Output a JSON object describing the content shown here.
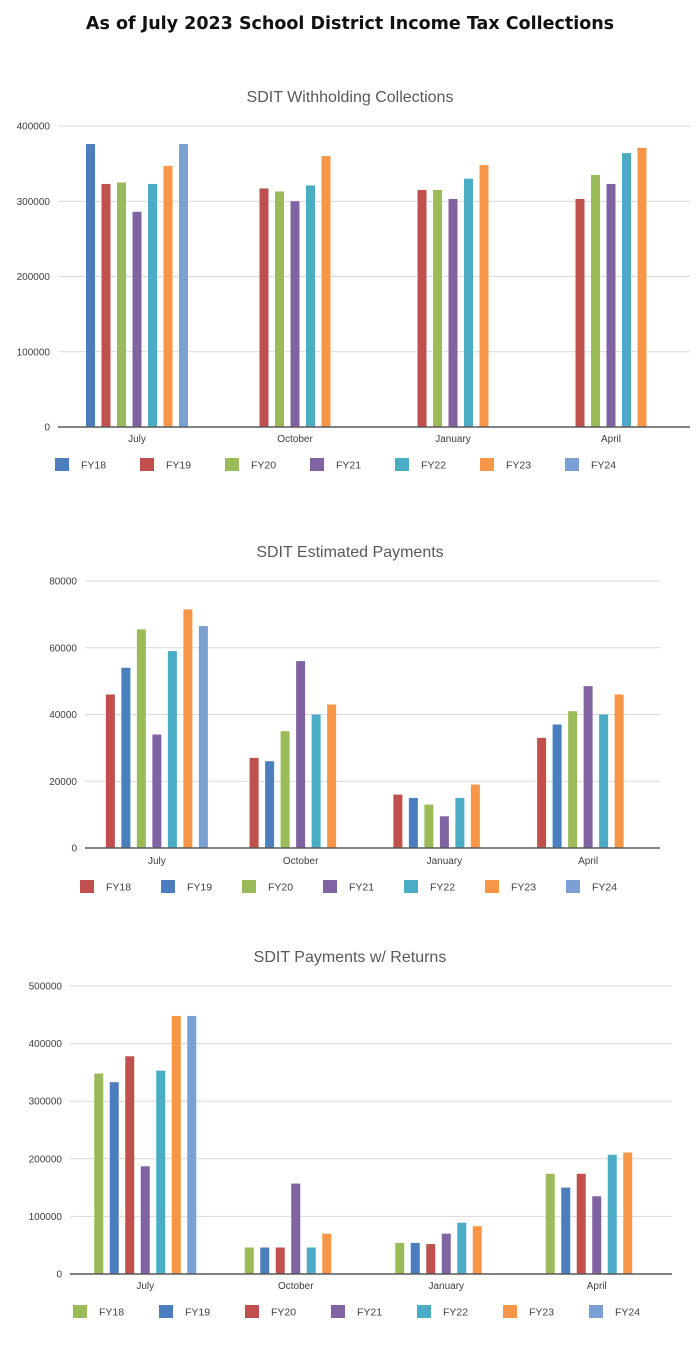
{
  "page": {
    "title": "As of July 2023 School District Income Tax Collections"
  },
  "chart_data": [
    {
      "type": "bar",
      "title": "SDIT Withholding Collections",
      "categories": [
        "July",
        "October",
        "January",
        "April"
      ],
      "ylim": [
        0,
        400000
      ],
      "yticks": [
        0,
        100000,
        200000,
        300000,
        400000
      ],
      "grid": true,
      "legend": "bottom",
      "series": [
        {
          "name": "FY18",
          "color": "#4a7ebf",
          "values": [
            376000,
            null,
            null,
            null
          ]
        },
        {
          "name": "FY19",
          "color": "#c0504d",
          "values": [
            323000,
            317000,
            315000,
            303000
          ]
        },
        {
          "name": "FY20",
          "color": "#9bbb59",
          "values": [
            325000,
            313000,
            315000,
            335000
          ]
        },
        {
          "name": "FY21",
          "color": "#8064a2",
          "values": [
            286000,
            300000,
            303000,
            323000
          ]
        },
        {
          "name": "FY22",
          "color": "#4bacc6",
          "values": [
            323000,
            321000,
            330000,
            364000
          ]
        },
        {
          "name": "FY23",
          "color": "#f79646",
          "values": [
            347000,
            360000,
            348000,
            371000
          ]
        },
        {
          "name": "FY24",
          "color": "#7ba0d4",
          "values": [
            376000,
            null,
            null,
            null
          ]
        }
      ]
    },
    {
      "type": "bar",
      "title": "SDIT Estimated Payments",
      "categories": [
        "July",
        "October",
        "January",
        "April"
      ],
      "ylim": [
        0,
        80000
      ],
      "yticks": [
        0,
        20000,
        40000,
        60000,
        80000
      ],
      "grid": true,
      "legend": "bottom",
      "series": [
        {
          "name": "FY18",
          "color": "#c0504d",
          "values": [
            46000,
            27000,
            16000,
            33000
          ]
        },
        {
          "name": "FY19",
          "color": "#4a7ebf",
          "values": [
            54000,
            26000,
            15000,
            37000
          ]
        },
        {
          "name": "FY20",
          "color": "#9bbb59",
          "values": [
            65500,
            35000,
            13000,
            41000
          ]
        },
        {
          "name": "FY21",
          "color": "#8064a2",
          "values": [
            34000,
            56000,
            9500,
            48500
          ]
        },
        {
          "name": "FY22",
          "color": "#4bacc6",
          "values": [
            59000,
            40000,
            15000,
            40000
          ]
        },
        {
          "name": "FY23",
          "color": "#f79646",
          "values": [
            71500,
            43000,
            19000,
            46000
          ]
        },
        {
          "name": "FY24",
          "color": "#7ba0d4",
          "values": [
            66500,
            null,
            null,
            null
          ]
        }
      ]
    },
    {
      "type": "bar",
      "title": "SDIT Payments w/ Returns",
      "categories": [
        "July",
        "October",
        "January",
        "April"
      ],
      "ylim": [
        0,
        500000
      ],
      "yticks": [
        0,
        100000,
        200000,
        300000,
        400000,
        500000
      ],
      "grid": true,
      "legend": "bottom",
      "series": [
        {
          "name": "FY18",
          "color": "#9bbb59",
          "values": [
            348000,
            46000,
            54000,
            174000
          ]
        },
        {
          "name": "FY19",
          "color": "#4a7ebf",
          "values": [
            333000,
            46000,
            54000,
            150000
          ]
        },
        {
          "name": "FY20",
          "color": "#c0504d",
          "values": [
            378000,
            46000,
            52000,
            174000
          ]
        },
        {
          "name": "FY21",
          "color": "#8064a2",
          "values": [
            187000,
            157000,
            70000,
            135000
          ]
        },
        {
          "name": "FY22",
          "color": "#4bacc6",
          "values": [
            353000,
            46000,
            89000,
            207000
          ]
        },
        {
          "name": "FY23",
          "color": "#f79646",
          "values": [
            448000,
            70000,
            83000,
            211000
          ]
        },
        {
          "name": "FY24",
          "color": "#7ba0d4",
          "values": [
            448000,
            null,
            null,
            null
          ]
        }
      ]
    }
  ]
}
